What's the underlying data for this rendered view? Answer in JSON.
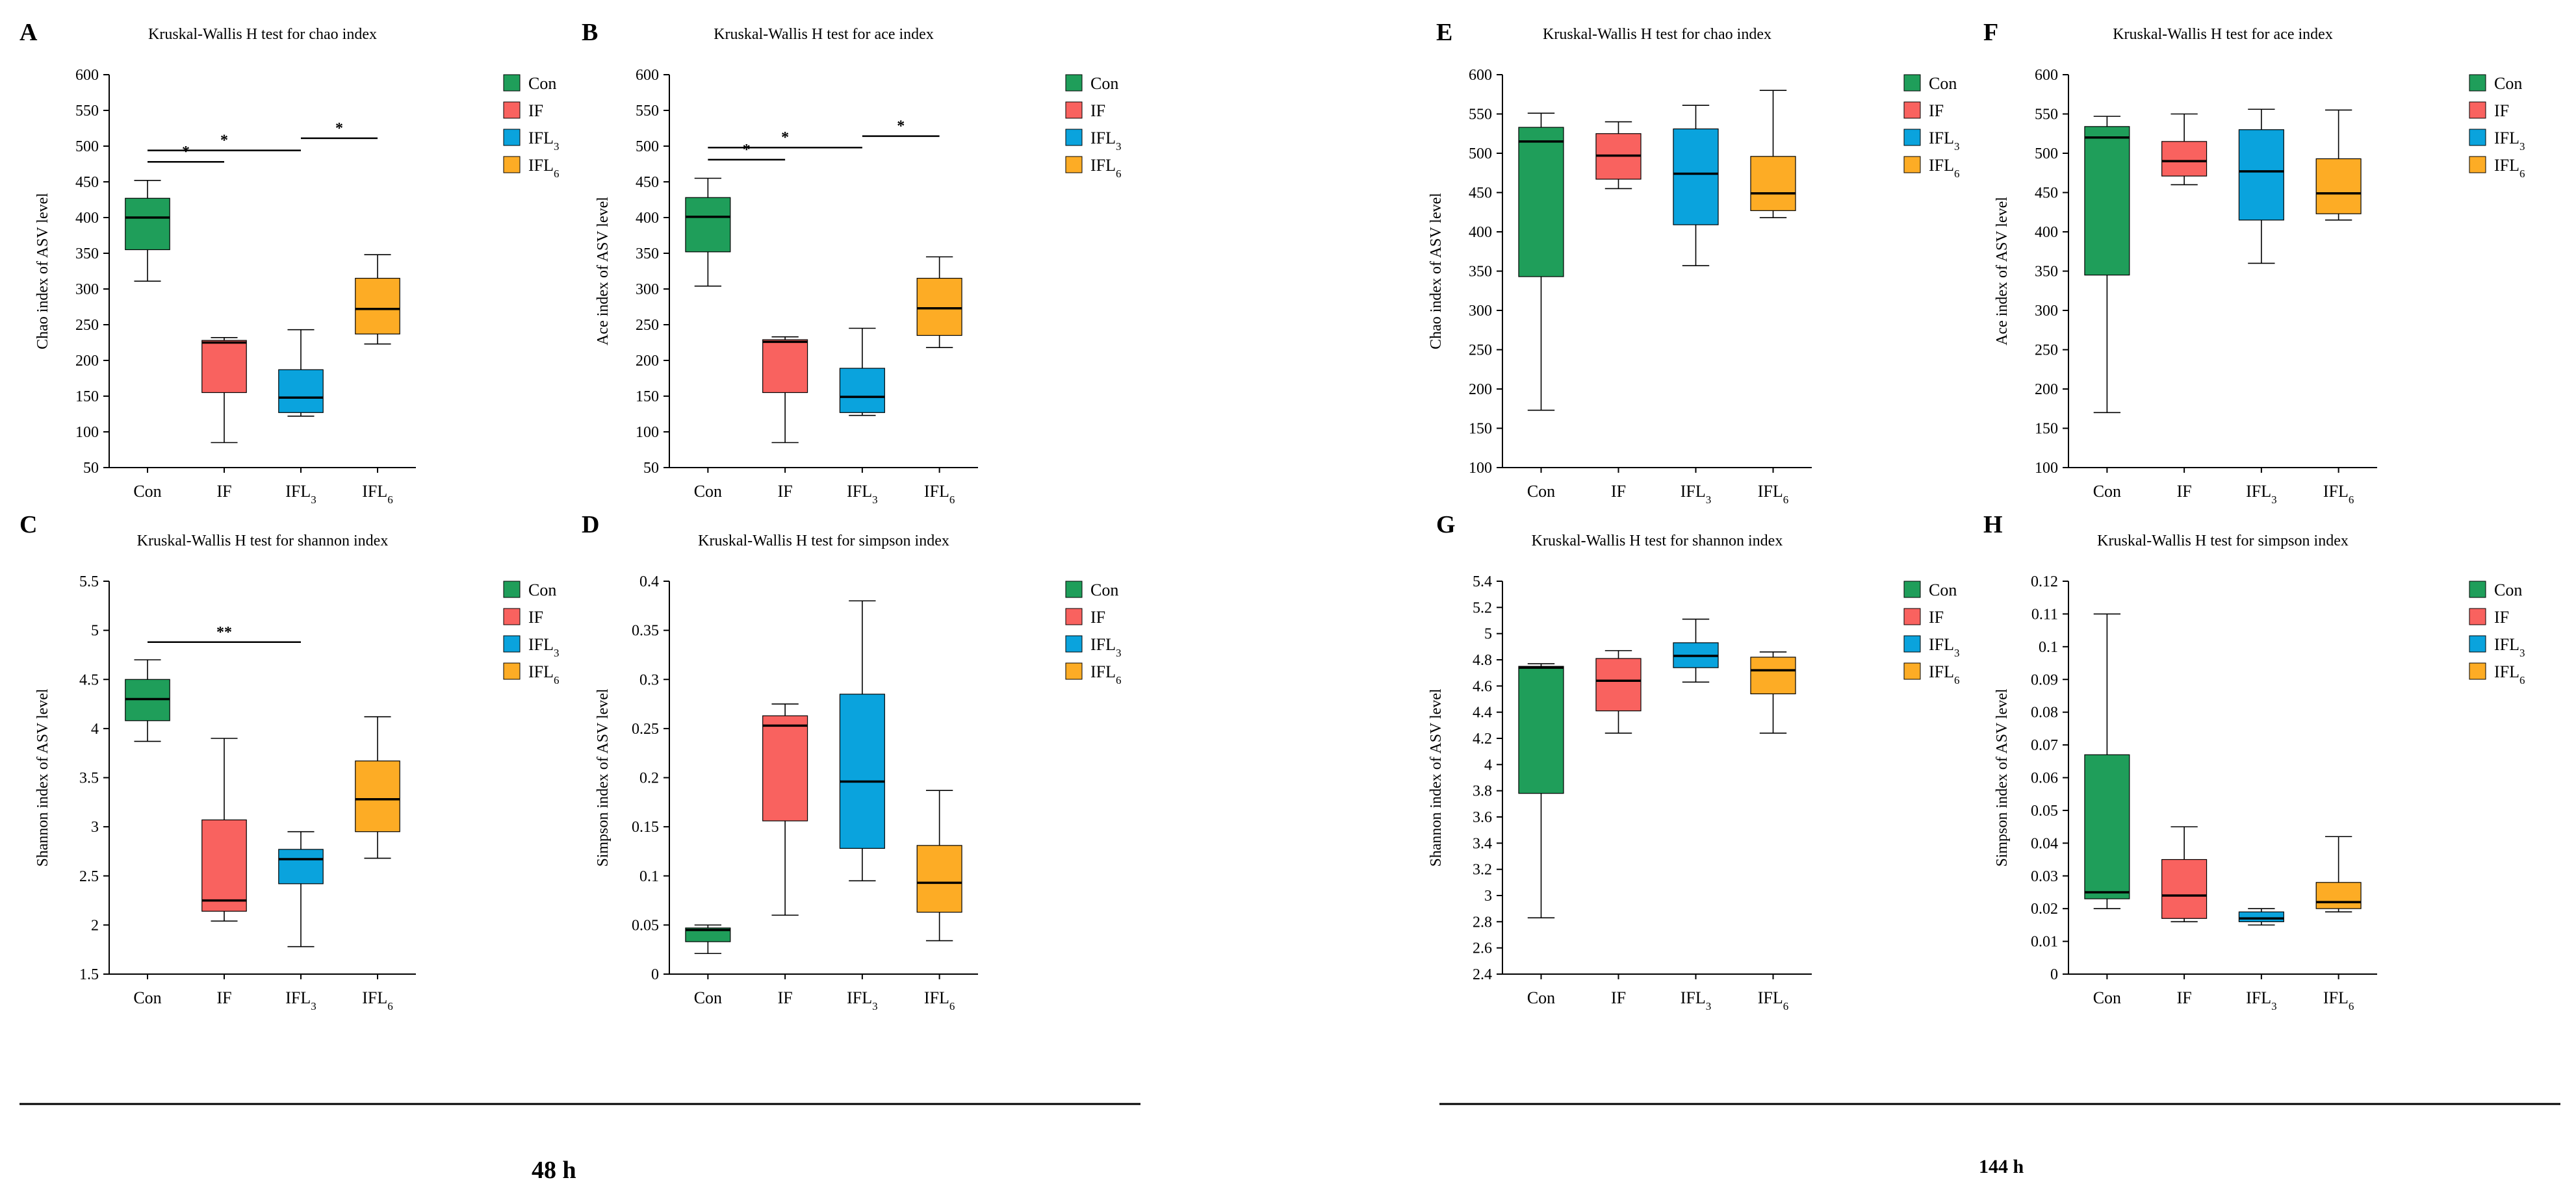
{
  "colors": {
    "Con": "#1f9e5a",
    "IF": "#f9625f",
    "IFL3": "#0aa3dd",
    "IFL6": "#fdac25",
    "axis": "#000000"
  },
  "time_labels": [
    "48 h",
    "144 h"
  ],
  "chart_data": [
    {
      "panel": "A",
      "type": "boxplot",
      "title": "Kruskal-Wallis H test for chao index",
      "xlabel": "",
      "ylabel": "Chao index of ASV level",
      "ylim": [
        50,
        600
      ],
      "yticks": [
        50,
        100,
        150,
        200,
        250,
        300,
        350,
        400,
        450,
        500,
        550,
        600
      ],
      "tick_decimals": 0,
      "legend_position": "top-right",
      "categories": [
        {
          "key": "Con",
          "label": "Con",
          "sub": ""
        },
        {
          "key": "IF",
          "label": "IF",
          "sub": ""
        },
        {
          "key": "IFL3",
          "label": "IFL",
          "sub": "3"
        },
        {
          "key": "IFL6",
          "label": "IFL",
          "sub": "6"
        }
      ],
      "boxes": [
        {
          "min": 311,
          "q1": 355,
          "median": 400,
          "q3": 427,
          "max": 452
        },
        {
          "min": 85,
          "q1": 155,
          "median": 225,
          "q3": 228,
          "max": 232
        },
        {
          "min": 122,
          "q1": 127,
          "median": 148,
          "q3": 187,
          "max": 243
        },
        {
          "min": 223,
          "q1": 237,
          "median": 272,
          "q3": 315,
          "max": 348
        }
      ],
      "significance": [
        {
          "from": 0,
          "to": 1,
          "y": 478,
          "label": "*"
        },
        {
          "from": 0,
          "to": 2,
          "y": 494,
          "label": "*"
        },
        {
          "from": 2,
          "to": 3,
          "y": 511,
          "label": "*"
        }
      ]
    },
    {
      "panel": "B",
      "type": "boxplot",
      "title": "Kruskal-Wallis H test for ace index",
      "xlabel": "",
      "ylabel": "Ace index of ASV level",
      "ylim": [
        50,
        600
      ],
      "yticks": [
        50,
        100,
        150,
        200,
        250,
        300,
        350,
        400,
        450,
        500,
        550,
        600
      ],
      "tick_decimals": 0,
      "legend_position": "top-right",
      "categories": [
        {
          "key": "Con",
          "label": "Con",
          "sub": ""
        },
        {
          "key": "IF",
          "label": "IF",
          "sub": ""
        },
        {
          "key": "IFL3",
          "label": "IFL",
          "sub": "3"
        },
        {
          "key": "IFL6",
          "label": "IFL",
          "sub": "6"
        }
      ],
      "boxes": [
        {
          "min": 304,
          "q1": 352,
          "median": 401,
          "q3": 428,
          "max": 455
        },
        {
          "min": 85,
          "q1": 155,
          "median": 226,
          "q3": 229,
          "max": 233
        },
        {
          "min": 123,
          "q1": 127,
          "median": 149,
          "q3": 189,
          "max": 245
        },
        {
          "min": 218,
          "q1": 235,
          "median": 273,
          "q3": 315,
          "max": 345
        }
      ],
      "significance": [
        {
          "from": 0,
          "to": 1,
          "y": 481,
          "label": "*"
        },
        {
          "from": 0,
          "to": 2,
          "y": 498,
          "label": "*"
        },
        {
          "from": 2,
          "to": 3,
          "y": 514,
          "label": "*"
        }
      ]
    },
    {
      "panel": "C",
      "type": "boxplot",
      "title": "Kruskal-Wallis H test for shannon index",
      "xlabel": "",
      "ylabel": "Shannon index of ASV level",
      "ylim": [
        1.5,
        5.5
      ],
      "yticks": [
        1.5,
        2,
        2.5,
        3,
        3.5,
        4,
        4.5,
        5,
        5.5
      ],
      "tick_decimals": -1,
      "legend_position": "top-right",
      "categories": [
        {
          "key": "Con",
          "label": "Con",
          "sub": ""
        },
        {
          "key": "IF",
          "label": "IF",
          "sub": ""
        },
        {
          "key": "IFL3",
          "label": "IFL",
          "sub": "3"
        },
        {
          "key": "IFL6",
          "label": "IFL",
          "sub": "6"
        }
      ],
      "boxes": [
        {
          "min": 3.87,
          "q1": 4.08,
          "median": 4.3,
          "q3": 4.5,
          "max": 4.7
        },
        {
          "min": 2.04,
          "q1": 2.14,
          "median": 2.25,
          "q3": 3.07,
          "max": 3.9
        },
        {
          "min": 1.78,
          "q1": 2.42,
          "median": 2.67,
          "q3": 2.77,
          "max": 2.95
        },
        {
          "min": 2.68,
          "q1": 2.95,
          "median": 3.28,
          "q3": 3.67,
          "max": 4.12
        }
      ],
      "significance": [
        {
          "from": 0,
          "to": 2,
          "y": 4.88,
          "label": "**"
        }
      ]
    },
    {
      "panel": "D",
      "type": "boxplot",
      "title": "Kruskal-Wallis H test for simpson index",
      "xlabel": "",
      "ylabel": "Simpson index of ASV level",
      "ylim": [
        0,
        0.4
      ],
      "yticks": [
        0,
        0.05,
        0.1,
        0.15,
        0.2,
        0.25,
        0.3,
        0.35,
        0.4
      ],
      "tick_decimals": -1,
      "legend_position": "top-right",
      "categories": [
        {
          "key": "Con",
          "label": "Con",
          "sub": ""
        },
        {
          "key": "IF",
          "label": "IF",
          "sub": ""
        },
        {
          "key": "IFL3",
          "label": "IFL",
          "sub": "3"
        },
        {
          "key": "IFL6",
          "label": "IFL",
          "sub": "6"
        }
      ],
      "boxes": [
        {
          "min": 0.021,
          "q1": 0.033,
          "median": 0.045,
          "q3": 0.047,
          "max": 0.05
        },
        {
          "min": 0.06,
          "q1": 0.156,
          "median": 0.253,
          "q3": 0.263,
          "max": 0.275
        },
        {
          "min": 0.095,
          "q1": 0.128,
          "median": 0.196,
          "q3": 0.285,
          "max": 0.38
        },
        {
          "min": 0.034,
          "q1": 0.063,
          "median": 0.093,
          "q3": 0.131,
          "max": 0.187
        }
      ],
      "significance": []
    },
    {
      "panel": "E",
      "type": "boxplot",
      "title": "Kruskal-Wallis H test for chao index",
      "xlabel": "",
      "ylabel": "Chao index of ASV level",
      "ylim": [
        100,
        600
      ],
      "yticks": [
        100,
        150,
        200,
        250,
        300,
        350,
        400,
        450,
        500,
        550,
        600
      ],
      "tick_decimals": 0,
      "legend_position": "top-right",
      "categories": [
        {
          "key": "Con",
          "label": "Con",
          "sub": ""
        },
        {
          "key": "IF",
          "label": "IF",
          "sub": ""
        },
        {
          "key": "IFL3",
          "label": "IFL",
          "sub": "3"
        },
        {
          "key": "IFL6",
          "label": "IFL",
          "sub": "6"
        }
      ],
      "boxes": [
        {
          "min": 173,
          "q1": 343,
          "median": 515,
          "q3": 533,
          "max": 551
        },
        {
          "min": 455,
          "q1": 467,
          "median": 497,
          "q3": 525,
          "max": 540
        },
        {
          "min": 357,
          "q1": 409,
          "median": 474,
          "q3": 531,
          "max": 561
        },
        {
          "min": 418,
          "q1": 427,
          "median": 449,
          "q3": 496,
          "max": 580
        }
      ],
      "significance": []
    },
    {
      "panel": "F",
      "type": "boxplot",
      "title": "Kruskal-Wallis H test for ace index",
      "xlabel": "",
      "ylabel": "Ace index of ASV level",
      "ylim": [
        100,
        600
      ],
      "yticks": [
        100,
        150,
        200,
        250,
        300,
        350,
        400,
        450,
        500,
        550,
        600
      ],
      "tick_decimals": 0,
      "legend_position": "top-right",
      "categories": [
        {
          "key": "Con",
          "label": "Con",
          "sub": ""
        },
        {
          "key": "IF",
          "label": "IF",
          "sub": ""
        },
        {
          "key": "IFL3",
          "label": "IFL",
          "sub": "3"
        },
        {
          "key": "IFL6",
          "label": "IFL",
          "sub": "6"
        }
      ],
      "boxes": [
        {
          "min": 170,
          "q1": 345,
          "median": 520,
          "q3": 534,
          "max": 547
        },
        {
          "min": 460,
          "q1": 471,
          "median": 490,
          "q3": 515,
          "max": 550
        },
        {
          "min": 360,
          "q1": 415,
          "median": 477,
          "q3": 530,
          "max": 556
        },
        {
          "min": 415,
          "q1": 423,
          "median": 449,
          "q3": 493,
          "max": 555
        }
      ],
      "significance": []
    },
    {
      "panel": "G",
      "type": "boxplot",
      "title": "Kruskal-Wallis H test for shannon index",
      "xlabel": "",
      "ylabel": "Shannon index of ASV level",
      "ylim": [
        2.4,
        5.4
      ],
      "yticks": [
        2.4,
        2.6,
        2.8,
        3,
        3.2,
        3.4,
        3.6,
        3.8,
        4,
        4.2,
        4.4,
        4.6,
        4.8,
        5,
        5.2,
        5.4
      ],
      "tick_decimals": -1,
      "legend_position": "top-right",
      "categories": [
        {
          "key": "Con",
          "label": "Con",
          "sub": ""
        },
        {
          "key": "IF",
          "label": "IF",
          "sub": ""
        },
        {
          "key": "IFL3",
          "label": "IFL",
          "sub": "3"
        },
        {
          "key": "IFL6",
          "label": "IFL",
          "sub": "6"
        }
      ],
      "boxes": [
        {
          "min": 2.83,
          "q1": 3.78,
          "median": 4.74,
          "q3": 4.75,
          "max": 4.77
        },
        {
          "min": 4.24,
          "q1": 4.41,
          "median": 4.64,
          "q3": 4.81,
          "max": 4.87
        },
        {
          "min": 4.63,
          "q1": 4.74,
          "median": 4.83,
          "q3": 4.93,
          "max": 5.11
        },
        {
          "min": 4.24,
          "q1": 4.54,
          "median": 4.72,
          "q3": 4.82,
          "max": 4.86
        }
      ],
      "significance": []
    },
    {
      "panel": "H",
      "type": "boxplot",
      "title": "Kruskal-Wallis H test for simpson index",
      "xlabel": "",
      "ylabel": "Simpson index of ASV level",
      "ylim": [
        0,
        0.12
      ],
      "yticks": [
        0,
        0.01,
        0.02,
        0.03,
        0.04,
        0.05,
        0.06,
        0.07,
        0.08,
        0.09,
        0.1,
        0.11,
        0.12
      ],
      "tick_decimals": -1,
      "legend_position": "top-right",
      "categories": [
        {
          "key": "Con",
          "label": "Con",
          "sub": ""
        },
        {
          "key": "IF",
          "label": "IF",
          "sub": ""
        },
        {
          "key": "IFL3",
          "label": "IFL",
          "sub": "3"
        },
        {
          "key": "IFL6",
          "label": "IFL",
          "sub": "6"
        }
      ],
      "boxes": [
        {
          "min": 0.02,
          "q1": 0.023,
          "median": 0.025,
          "q3": 0.067,
          "max": 0.11
        },
        {
          "min": 0.016,
          "q1": 0.017,
          "median": 0.024,
          "q3": 0.035,
          "max": 0.045
        },
        {
          "min": 0.015,
          "q1": 0.016,
          "median": 0.017,
          "q3": 0.019,
          "max": 0.02
        },
        {
          "min": 0.019,
          "q1": 0.02,
          "median": 0.022,
          "q3": 0.028,
          "max": 0.042
        }
      ],
      "significance": []
    }
  ],
  "legend_items": [
    {
      "key": "Con",
      "label": "Con",
      "sub": ""
    },
    {
      "key": "IF",
      "label": "IF",
      "sub": ""
    },
    {
      "key": "IFL3",
      "label": "IFL",
      "sub": "3"
    },
    {
      "key": "IFL6",
      "label": "IFL",
      "sub": "6"
    }
  ]
}
